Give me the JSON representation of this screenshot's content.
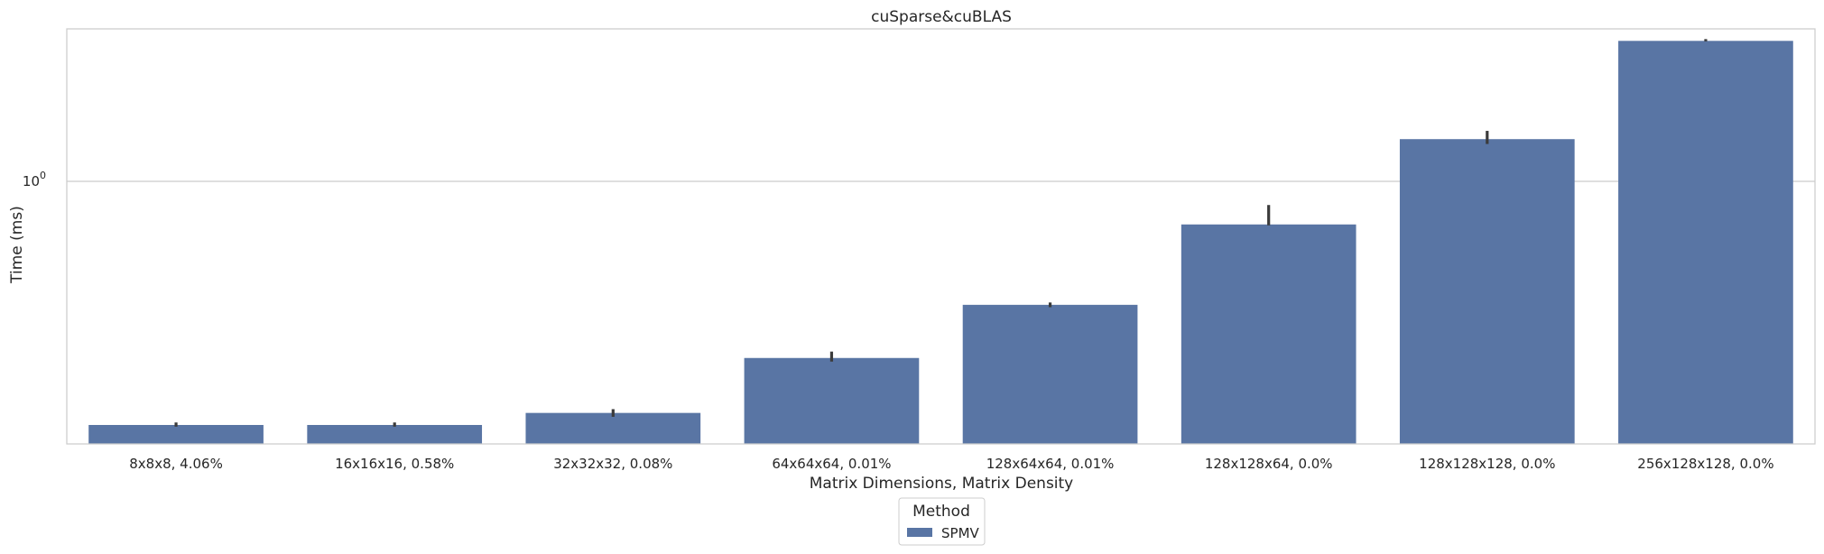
{
  "chart_data": {
    "type": "bar",
    "title": "cuSparse&cuBLAS",
    "xlabel": "Matrix Dimensions, Matrix Density",
    "ylabel": "Time (ms)",
    "yscale": "log",
    "ylim": [
      0.135,
      3.2
    ],
    "ytick_label": {
      "base": "10",
      "exponent": "0"
    },
    "categories": [
      "8x8x8, 4.06%",
      "16x16x16, 0.58%",
      "32x32x32, 0.08%",
      "64x64x64, 0.01%",
      "128x64x64, 0.01%",
      "128x128x64, 0.0%",
      "128x128x128, 0.0%",
      "256x128x128, 0.0%"
    ],
    "series": [
      {
        "name": "SPMV",
        "color": "#5975a4",
        "values": [
          0.156,
          0.156,
          0.171,
          0.26,
          0.39,
          0.72,
          1.38,
          2.92
        ],
        "error_low": [
          0.154,
          0.154,
          0.166,
          0.253,
          0.383,
          0.715,
          1.33,
          2.91
        ],
        "error_high": [
          0.159,
          0.159,
          0.176,
          0.273,
          0.397,
          0.835,
          1.47,
          2.96
        ]
      }
    ],
    "grid": true,
    "legend": {
      "title": "Method",
      "placement": "bottom-center"
    }
  }
}
